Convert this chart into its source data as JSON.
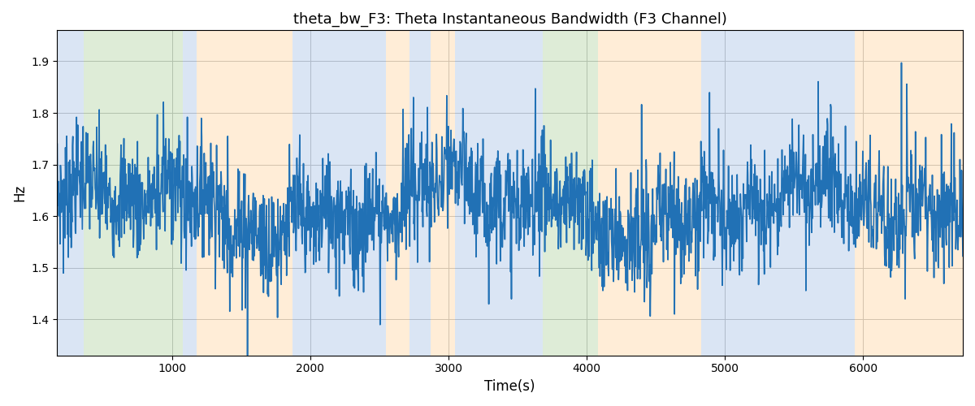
{
  "title": "theta_bw_F3: Theta Instantaneous Bandwidth (F3 Channel)",
  "xlabel": "Time(s)",
  "ylabel": "Hz",
  "xlim": [
    170,
    6720
  ],
  "ylim": [
    1.33,
    1.96
  ],
  "line_color": "#2171b5",
  "line_width": 1.2,
  "background_color": "#ffffff",
  "grid_color": "#b0b0b0",
  "colored_bands": [
    {
      "xmin": 170,
      "xmax": 360,
      "color": "#aec6e8",
      "alpha": 0.45
    },
    {
      "xmin": 360,
      "xmax": 1080,
      "color": "#b6d7a8",
      "alpha": 0.45
    },
    {
      "xmin": 1080,
      "xmax": 1180,
      "color": "#aec6e8",
      "alpha": 0.45
    },
    {
      "xmin": 1180,
      "xmax": 1870,
      "color": "#ffd9a8",
      "alpha": 0.45
    },
    {
      "xmin": 1870,
      "xmax": 2550,
      "color": "#aec6e8",
      "alpha": 0.45
    },
    {
      "xmin": 2550,
      "xmax": 2720,
      "color": "#ffd9a8",
      "alpha": 0.45
    },
    {
      "xmin": 2720,
      "xmax": 2870,
      "color": "#aec6e8",
      "alpha": 0.45
    },
    {
      "xmin": 2870,
      "xmax": 3050,
      "color": "#ffd9a8",
      "alpha": 0.45
    },
    {
      "xmin": 3050,
      "xmax": 3680,
      "color": "#aec6e8",
      "alpha": 0.45
    },
    {
      "xmin": 3680,
      "xmax": 4080,
      "color": "#b6d7a8",
      "alpha": 0.45
    },
    {
      "xmin": 4080,
      "xmax": 4630,
      "color": "#ffd9a8",
      "alpha": 0.45
    },
    {
      "xmin": 4630,
      "xmax": 4830,
      "color": "#ffd9a8",
      "alpha": 0.45
    },
    {
      "xmin": 4830,
      "xmax": 5940,
      "color": "#aec6e8",
      "alpha": 0.45
    },
    {
      "xmin": 5940,
      "xmax": 6720,
      "color": "#ffd9a8",
      "alpha": 0.45
    }
  ],
  "seed": 7,
  "n_points": 2200,
  "t_start": 170,
  "t_end": 6720,
  "mean_val": 1.615,
  "noise_std": 0.055,
  "slow_amp1": 0.04,
  "slow_period1": 2500,
  "slow_amp2": 0.025,
  "slow_period2": 900
}
